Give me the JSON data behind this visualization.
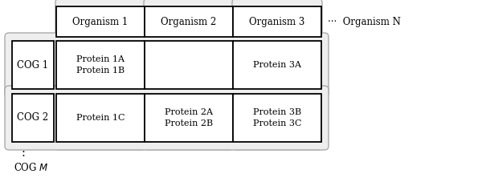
{
  "bg_color": "#ffffff",
  "organism_labels": [
    "Organism 1",
    "Organism 2",
    "Organism 3"
  ],
  "organism_dots": "···",
  "organism_N": "Organism N",
  "cog_labels": [
    "COG 1",
    "COG 2"
  ],
  "cog_dots": ":",
  "cog_M": "COG M",
  "cell_contents": [
    [
      "Protein 1A\nProtein 1B",
      "",
      "Protein 3A"
    ],
    [
      "Protein 1C",
      "Protein 2A\nProtein 2B",
      "Protein 3B\nProtein 3C"
    ]
  ],
  "lw_outer": 1.3,
  "lw_inner": 1.0,
  "lw_rounded": 1.0,
  "fontsize_cell": 8.0,
  "fontsize_header": 8.5,
  "fontsize_label": 8.5,
  "fontsize_cog_label": 8.5,
  "rounded_edgecolor": "#aaaaaa",
  "rounded_facecolor": "#eeeeee",
  "cell_edgecolor": "#000000",
  "cell_facecolor": "#ffffff"
}
